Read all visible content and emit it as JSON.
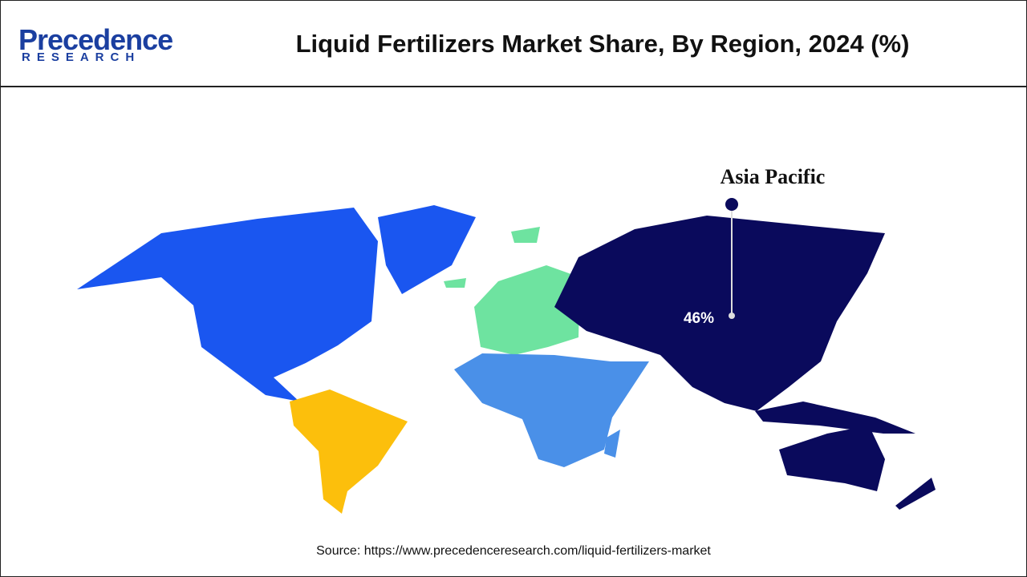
{
  "header": {
    "logo": {
      "name": "Precedence",
      "tagline": "RESEARCH"
    },
    "title": "Liquid Fertilizers Market Share, By Region, 2024 (%)"
  },
  "map": {
    "regions": [
      {
        "color": "#1a56f0"
      },
      {
        "color": "#fcbf0c"
      },
      {
        "color": "#6ee3a0"
      },
      {
        "color": "#4a90e8"
      },
      {
        "color": "#0a0a5c"
      }
    ],
    "annotation": {
      "region": "Asia Pacific",
      "value": 46,
      "value_label": "46%"
    }
  },
  "footer": {
    "source": "Source: https://www.precedenceresearch.com/liquid-fertilizers-market"
  }
}
